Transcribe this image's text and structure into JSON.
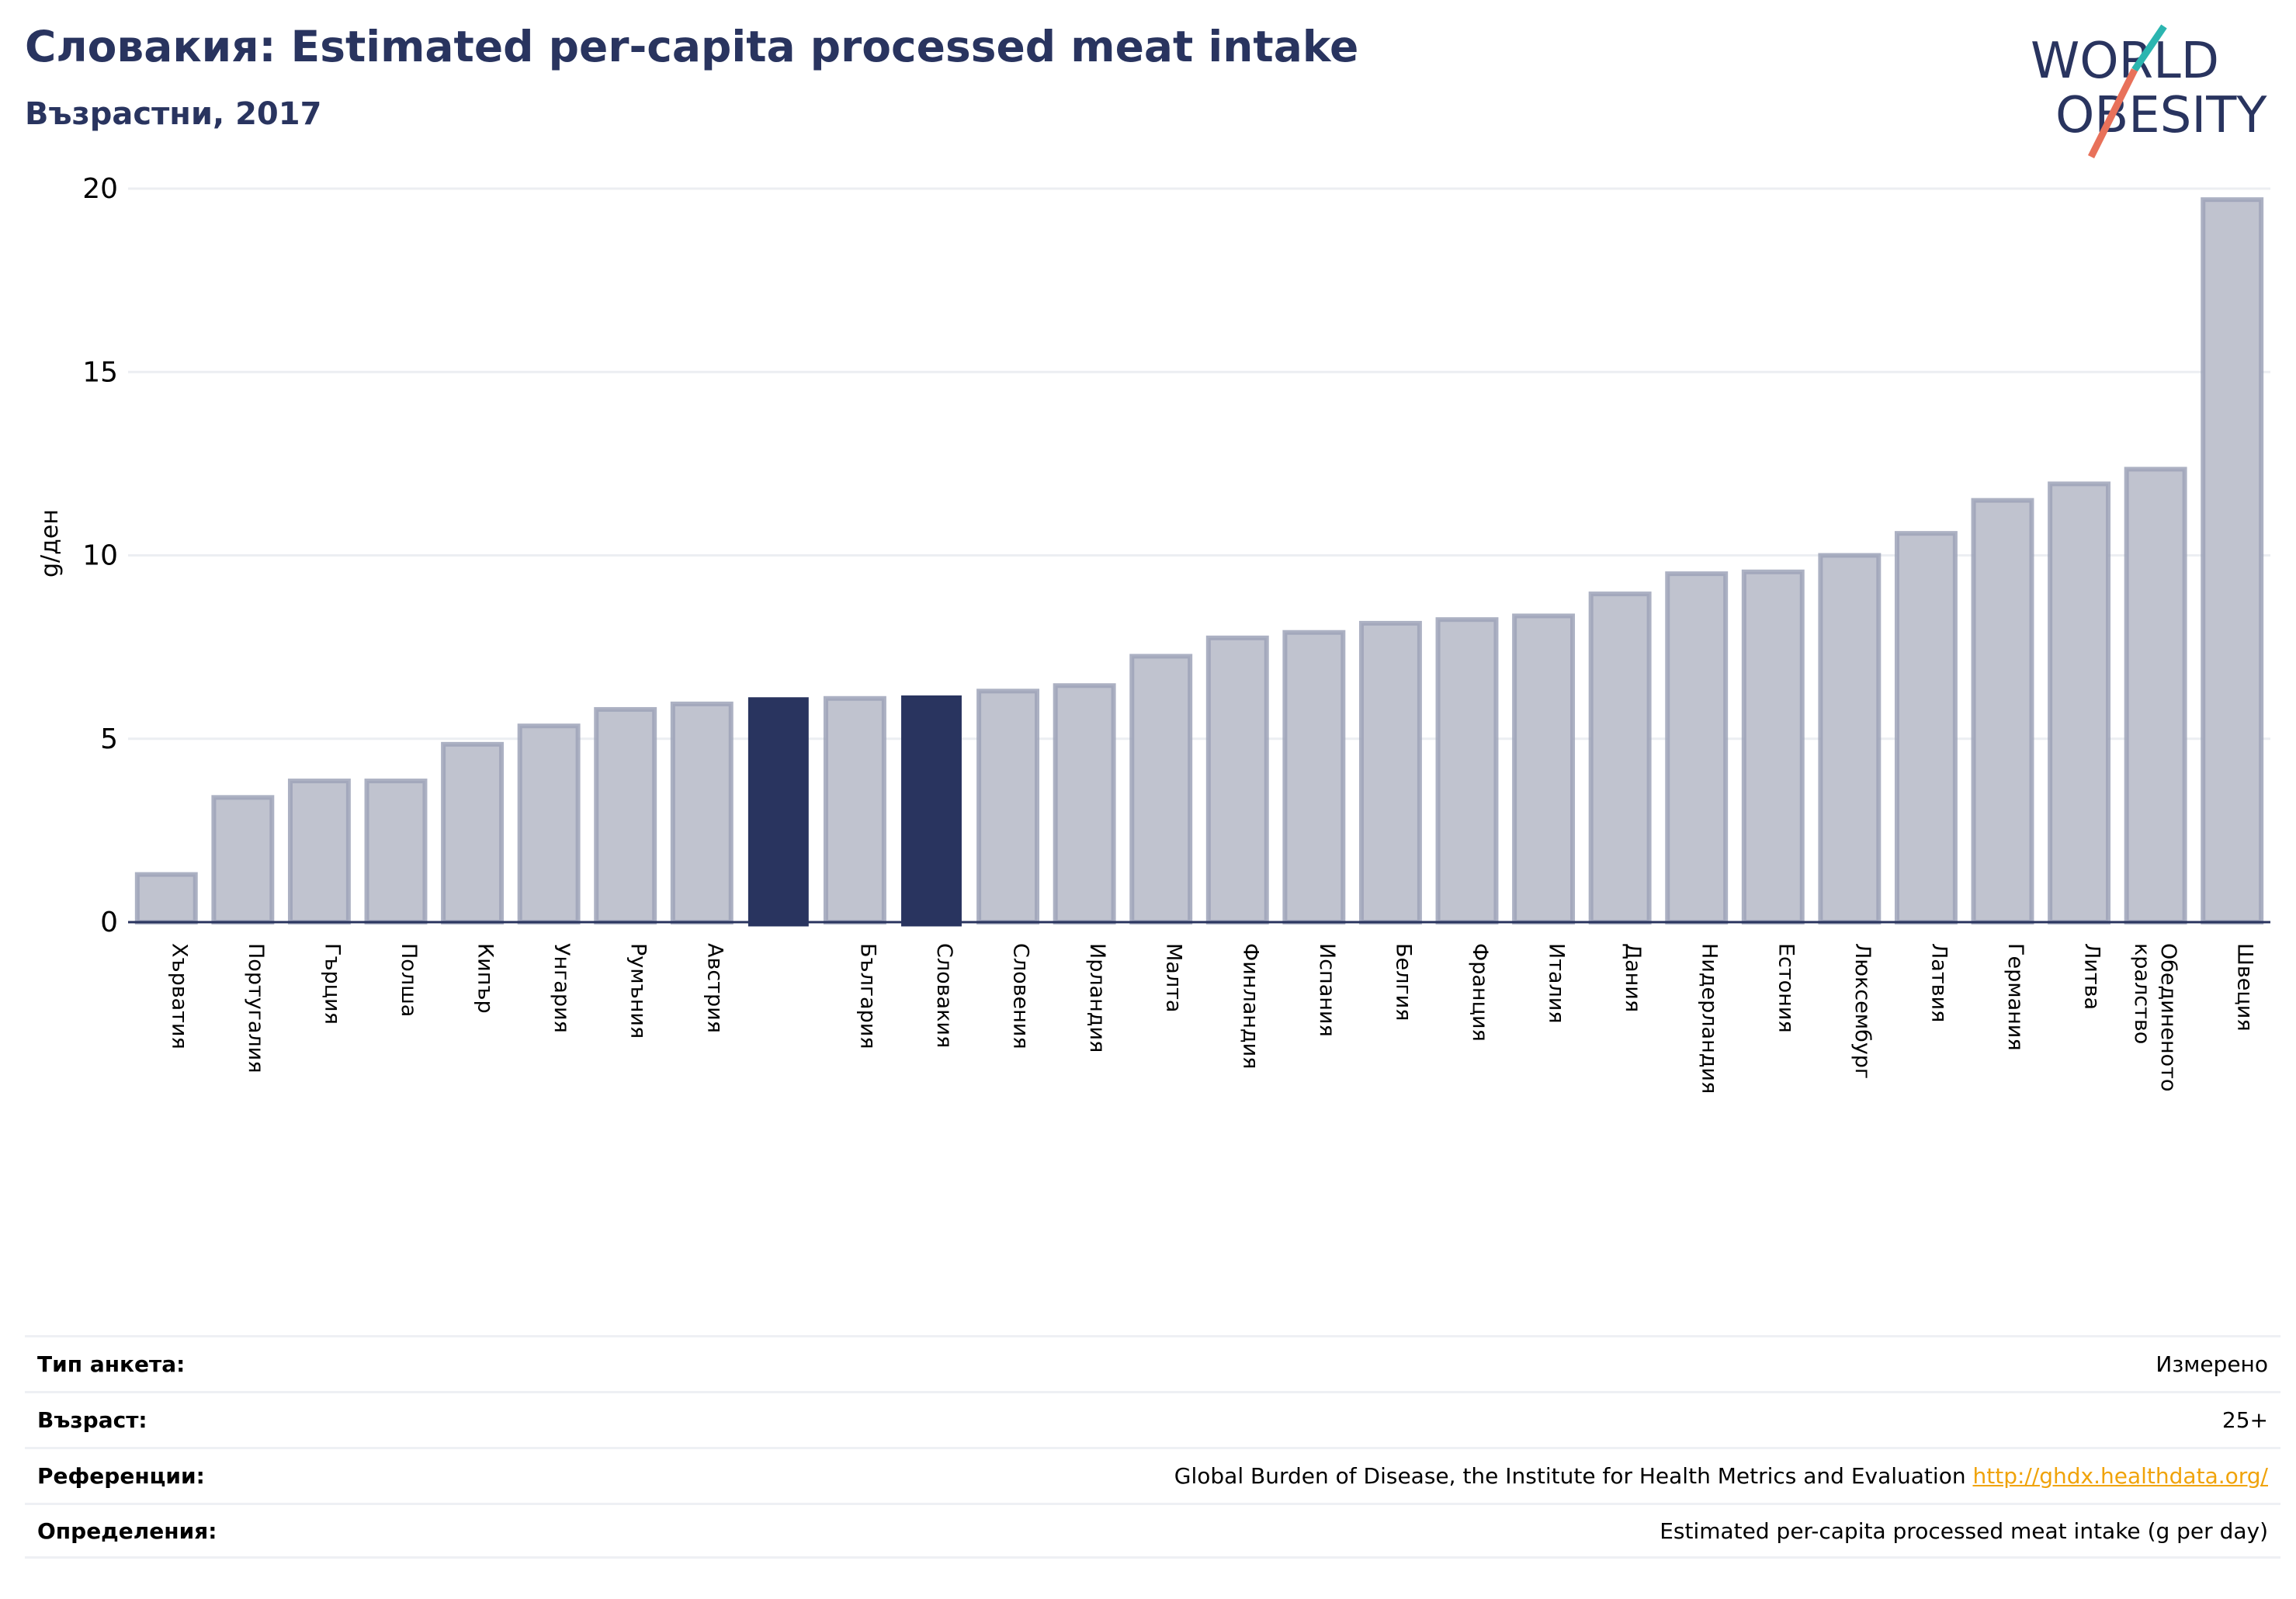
{
  "header": {
    "title": "Словакия: Estimated per-capita processed meat intake",
    "subtitle": "Възрастни, 2017"
  },
  "logo": {
    "line1": "WORLD",
    "line2": "OBESITY"
  },
  "colors": {
    "title": "#29345f",
    "bar": "#c0c3cf",
    "bar_border": "#9ea3b8",
    "highlight": "#29345f",
    "grid": "#eceef2",
    "link": "#f0a30a",
    "logo_teal": "#2bb5b0",
    "logo_red": "#e8715a"
  },
  "chart_data": {
    "type": "bar",
    "ylabel": "g/ден",
    "ylim": [
      0,
      20
    ],
    "yticks": [
      0,
      5,
      10,
      15,
      20
    ],
    "grid": true,
    "categories": [
      "Хърватия",
      "Португалия",
      "Гърция",
      "Полша",
      "Кипър",
      "Унгария",
      "Румъния",
      "Австрия",
      "",
      "България",
      "Словакия",
      "Словения",
      "Ирландия",
      "Малта",
      "Финландия",
      "Испания",
      "Белгия",
      "Франция",
      "Италия",
      "Дания",
      "Нидерландия",
      "Естония",
      "Люксембург",
      "Латвия",
      "Германия",
      "Литва",
      "Обединеното кралство",
      "Швеция"
    ],
    "values": [
      1.3,
      3.4,
      3.85,
      3.85,
      4.85,
      5.35,
      5.8,
      5.95,
      6.1,
      6.1,
      6.15,
      6.3,
      6.45,
      7.25,
      7.75,
      7.9,
      8.15,
      8.25,
      8.35,
      8.95,
      9.5,
      9.55,
      10.0,
      10.6,
      11.5,
      11.95,
      12.35,
      19.7
    ],
    "highlight_indices": [
      8,
      10
    ]
  },
  "info": {
    "survey_label": "Тип анкета:",
    "survey_value": "Измерено",
    "age_label": "Възраст:",
    "age_value": "25+",
    "refs_label": "Референции:",
    "refs_text": "Global Burden of Disease, the Institute for Health Metrics and Evaluation",
    "refs_link": "http://ghdx.healthdata.org/",
    "defs_label": "Определения:",
    "defs_value": "Estimated per-capita processed meat intake (g per day)"
  }
}
